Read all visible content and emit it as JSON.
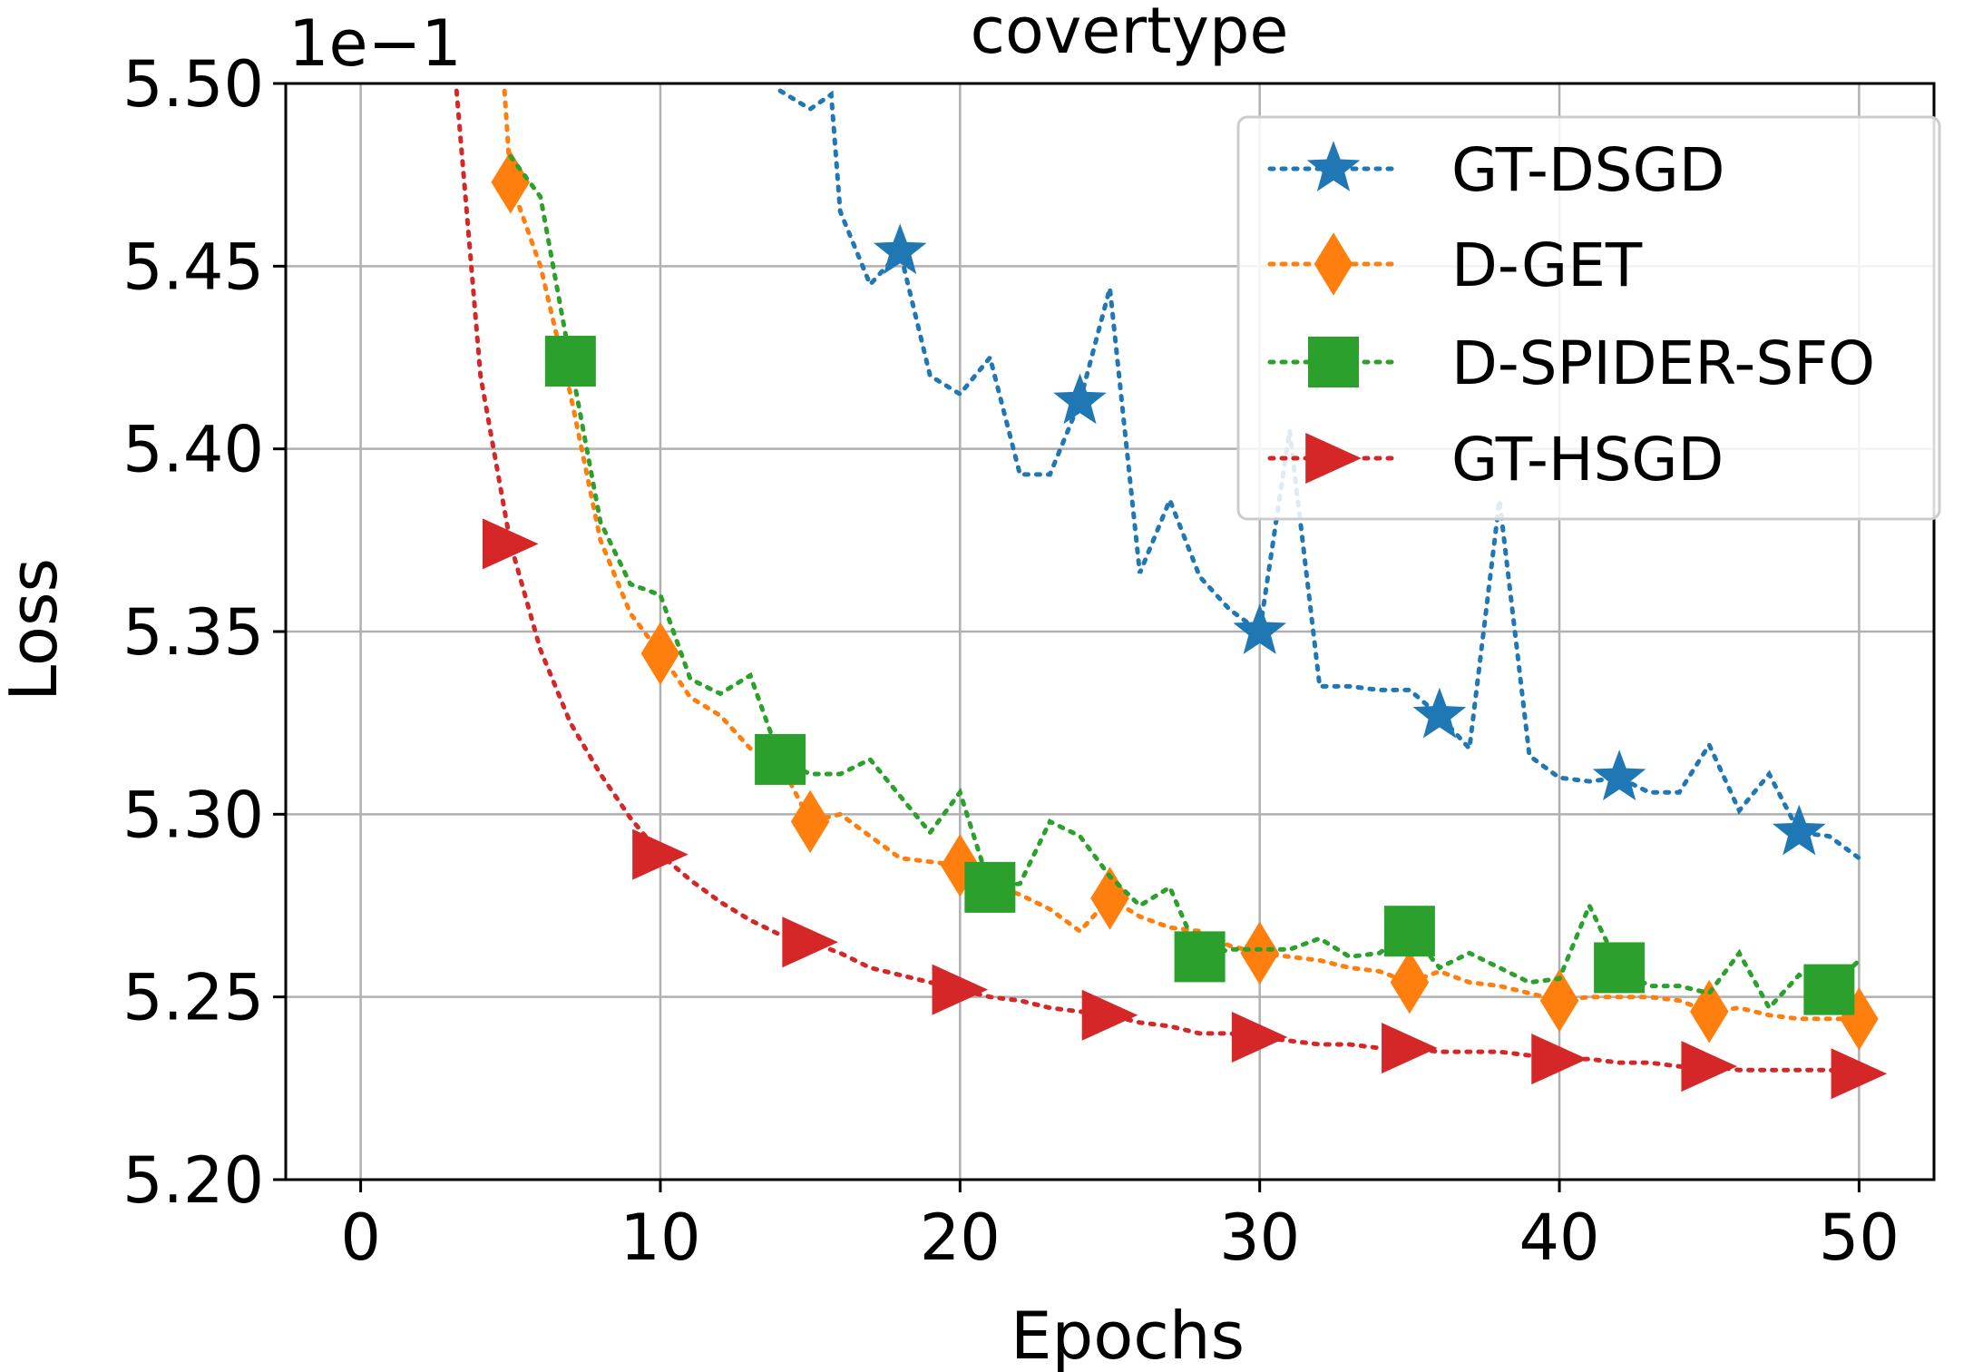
{
  "chart_data": {
    "type": "line",
    "title": "covertype",
    "xlabel": "Epochs",
    "ylabel": "Loss",
    "offset_text": "1e−1",
    "xlim": [
      -2.5,
      52.5
    ],
    "ylim": [
      5.2,
      5.5
    ],
    "xticks": [
      0,
      10,
      20,
      30,
      40,
      50
    ],
    "xtick_labels": [
      "0",
      "10",
      "20",
      "30",
      "40",
      "50"
    ],
    "yticks": [
      5.2,
      5.25,
      5.3,
      5.35,
      5.4,
      5.45,
      5.5
    ],
    "ytick_labels": [
      "5.20",
      "5.25",
      "5.30",
      "5.35",
      "5.40",
      "5.45",
      "5.50"
    ],
    "grid": true,
    "legend_position": "top-right",
    "series": [
      {
        "name": "GT-DSGD",
        "color": "#1f77b4",
        "marker": "star",
        "x": [
          14,
          15,
          15.7,
          16,
          17,
          18,
          19,
          20,
          21,
          22,
          23,
          24,
          25,
          26,
          27,
          28,
          29,
          30,
          31,
          32,
          33,
          34,
          35,
          36,
          37,
          38,
          39,
          40,
          41,
          42,
          43,
          44,
          45,
          46,
          47,
          48,
          49,
          50
        ],
        "y": [
          5.498,
          5.493,
          5.497,
          5.465,
          5.445,
          5.454,
          5.42,
          5.415,
          5.425,
          5.393,
          5.393,
          5.413,
          5.444,
          5.366,
          5.386,
          5.365,
          5.356,
          5.35,
          5.405,
          5.335,
          5.335,
          5.334,
          5.334,
          5.327,
          5.318,
          5.386,
          5.316,
          5.31,
          5.309,
          5.31,
          5.306,
          5.306,
          5.319,
          5.301,
          5.311,
          5.295,
          5.294,
          5.288
        ],
        "marker_x": [
          18,
          24,
          30,
          36,
          42,
          48
        ],
        "marker_y": [
          5.454,
          5.413,
          5.35,
          5.327,
          5.31,
          5.295
        ]
      },
      {
        "name": "D-GET",
        "color": "#ff7f0e",
        "marker": "diamond",
        "x": [
          4.8,
          5,
          6,
          7,
          8,
          9,
          10,
          11,
          12,
          13,
          14,
          15,
          16,
          17,
          18,
          19,
          20,
          21,
          22,
          23,
          24,
          25,
          26,
          27,
          28,
          29,
          30,
          31,
          32,
          33,
          34,
          35,
          36,
          37,
          38,
          39,
          40,
          41,
          42,
          43,
          44,
          45,
          46,
          47,
          48,
          49,
          50
        ],
        "y": [
          5.498,
          5.473,
          5.45,
          5.415,
          5.375,
          5.355,
          5.344,
          5.332,
          5.327,
          5.318,
          5.314,
          5.298,
          5.3,
          5.294,
          5.288,
          5.287,
          5.286,
          5.281,
          5.278,
          5.274,
          5.268,
          5.277,
          5.272,
          5.269,
          5.268,
          5.264,
          5.262,
          5.261,
          5.26,
          5.258,
          5.257,
          5.254,
          5.257,
          5.254,
          5.253,
          5.251,
          5.249,
          5.25,
          5.25,
          5.25,
          5.249,
          5.246,
          5.247,
          5.245,
          5.244,
          5.244,
          5.244
        ],
        "marker_x": [
          5,
          10,
          15,
          20,
          25,
          30,
          35,
          40,
          45,
          50
        ],
        "marker_y": [
          5.473,
          5.344,
          5.298,
          5.286,
          5.277,
          5.262,
          5.254,
          5.249,
          5.246,
          5.244
        ]
      },
      {
        "name": "D-SPIDER-SFO",
        "color": "#2ca02c",
        "marker": "square",
        "x": [
          5,
          6,
          7,
          8,
          9,
          10,
          11,
          12,
          13,
          14,
          15,
          16,
          17,
          18,
          19,
          20,
          21,
          22,
          23,
          24,
          25,
          26,
          27,
          28,
          29,
          30,
          31,
          32,
          33,
          34,
          35,
          36,
          37,
          38,
          39,
          40,
          41,
          42,
          43,
          44,
          45,
          46,
          47,
          48,
          49,
          50
        ],
        "y": [
          5.48,
          5.469,
          5.424,
          5.38,
          5.363,
          5.36,
          5.337,
          5.333,
          5.338,
          5.315,
          5.311,
          5.311,
          5.315,
          5.305,
          5.295,
          5.306,
          5.28,
          5.281,
          5.298,
          5.294,
          5.283,
          5.275,
          5.28,
          5.261,
          5.263,
          5.263,
          5.263,
          5.266,
          5.261,
          5.262,
          5.268,
          5.258,
          5.262,
          5.258,
          5.254,
          5.255,
          5.275,
          5.258,
          5.253,
          5.253,
          5.251,
          5.262,
          5.247,
          5.256,
          5.252,
          5.26
        ],
        "marker_x": [
          7,
          14,
          21,
          28,
          35,
          42,
          49
        ],
        "marker_y": [
          5.424,
          5.315,
          5.28,
          5.261,
          5.268,
          5.258,
          5.252
        ]
      },
      {
        "name": "GT-HSGD",
        "color": "#d62728",
        "marker": "triangle-right",
        "x": [
          3.2,
          4,
          5,
          6,
          7,
          8,
          9,
          10,
          11,
          12,
          13,
          14,
          15,
          16,
          17,
          18,
          19,
          20,
          21,
          22,
          23,
          24,
          25,
          26,
          27,
          28,
          29,
          30,
          31,
          32,
          33,
          34,
          35,
          36,
          37,
          38,
          39,
          40,
          41,
          42,
          43,
          44,
          45,
          46,
          47,
          48,
          49,
          50
        ],
        "y": [
          5.498,
          5.42,
          5.374,
          5.345,
          5.325,
          5.311,
          5.299,
          5.289,
          5.282,
          5.276,
          5.271,
          5.267,
          5.265,
          5.262,
          5.258,
          5.256,
          5.254,
          5.252,
          5.25,
          5.249,
          5.247,
          5.246,
          5.245,
          5.243,
          5.242,
          5.24,
          5.24,
          5.239,
          5.238,
          5.237,
          5.237,
          5.236,
          5.236,
          5.235,
          5.235,
          5.235,
          5.234,
          5.233,
          5.233,
          5.232,
          5.232,
          5.231,
          5.231,
          5.23,
          5.23,
          5.23,
          5.23,
          5.229
        ],
        "marker_x": [
          5,
          10,
          15,
          20,
          25,
          30,
          35,
          40,
          45,
          50
        ],
        "marker_y": [
          5.374,
          5.289,
          5.265,
          5.252,
          5.245,
          5.239,
          5.236,
          5.233,
          5.231,
          5.229
        ]
      }
    ]
  }
}
